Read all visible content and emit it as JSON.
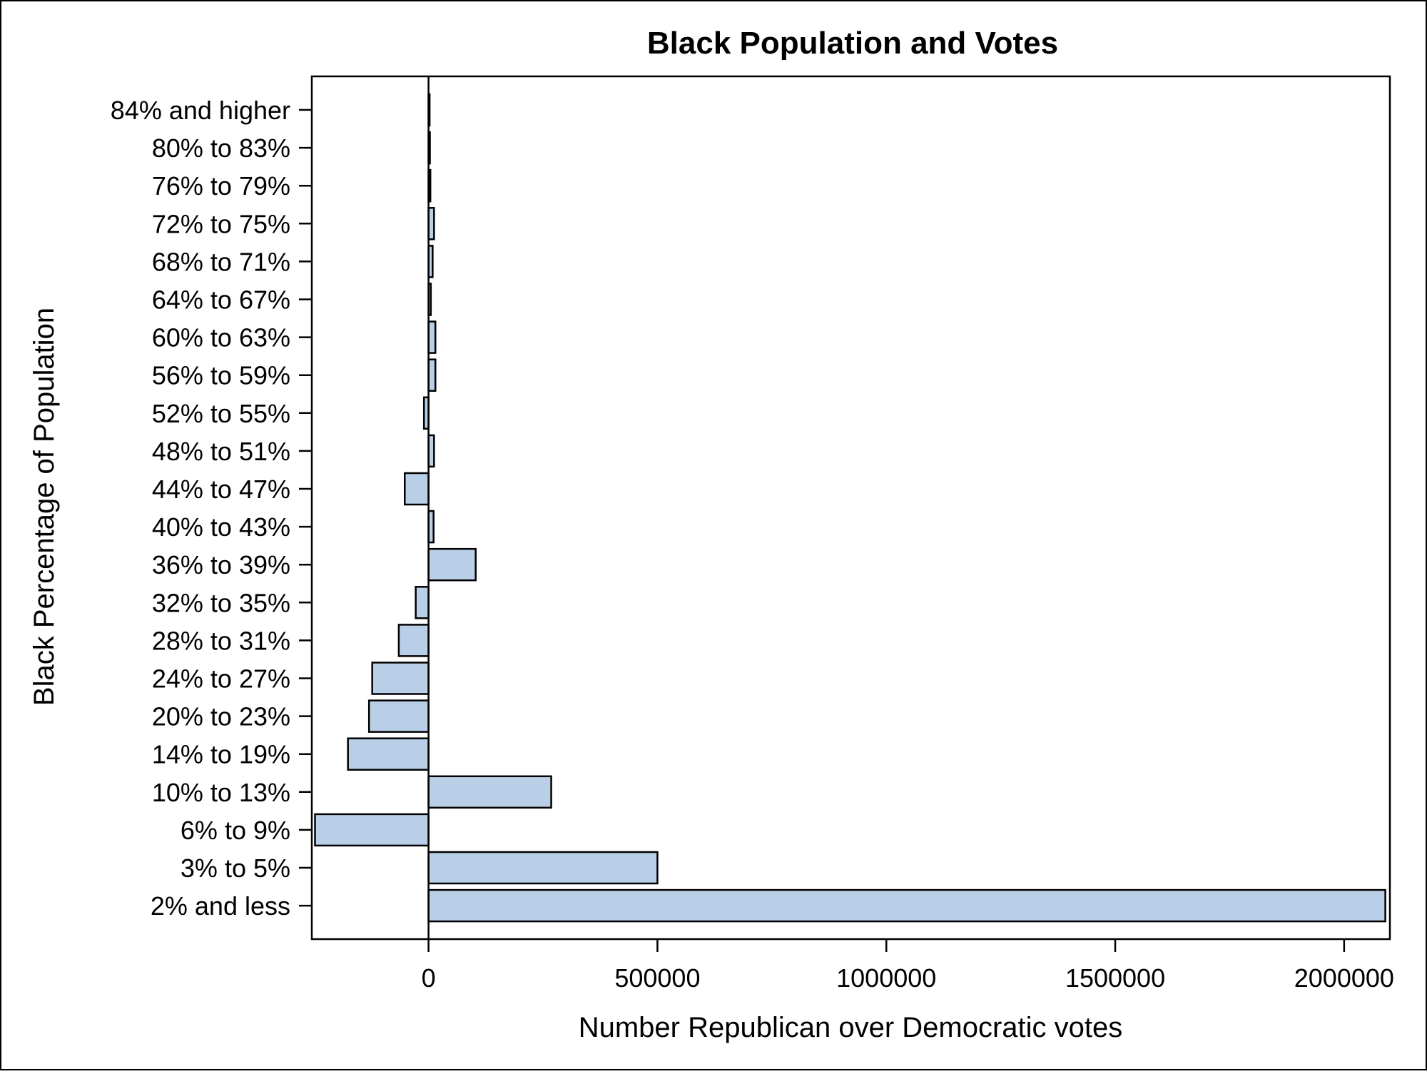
{
  "chart_data": {
    "type": "bar",
    "orientation": "horizontal",
    "title": "Black Population and Votes",
    "xlabel": "Number Republican over Democratic votes",
    "ylabel": "Black Percentage of Population",
    "categories": [
      "84% and higher",
      "80% to 83%",
      "76% to 79%",
      "72% to 75%",
      "68% to 71%",
      "64% to 67%",
      "60% to 63%",
      "56% to 59%",
      "52% to 55%",
      "48% to 51%",
      "44% to 47%",
      "40% to 43%",
      "36% to 39%",
      "32% to 35%",
      "28% to 31%",
      "24% to 27%",
      "20% to 23%",
      "14% to 19%",
      "10% to 13%",
      "6% to 9%",
      "3% to 5%",
      "2% and less"
    ],
    "values": [
      2000,
      3000,
      4000,
      12000,
      9000,
      5000,
      15000,
      15000,
      -10000,
      12000,
      -52000,
      11000,
      103000,
      -28000,
      -65000,
      -123000,
      -130000,
      -176000,
      268000,
      -248000,
      500000,
      2090000
    ],
    "xlim": [
      -255000,
      2100000
    ],
    "xticks": [
      "0",
      "500000",
      "1000000",
      "1500000",
      "2000000"
    ],
    "xtick_values": [
      0,
      500000,
      1000000,
      1500000,
      2000000
    ],
    "grid": false,
    "legend": "none",
    "colors": {
      "bar_fill": "#b9cfe8",
      "bar_stroke": "#000000",
      "axis": "#000000",
      "text": "#000000"
    }
  }
}
